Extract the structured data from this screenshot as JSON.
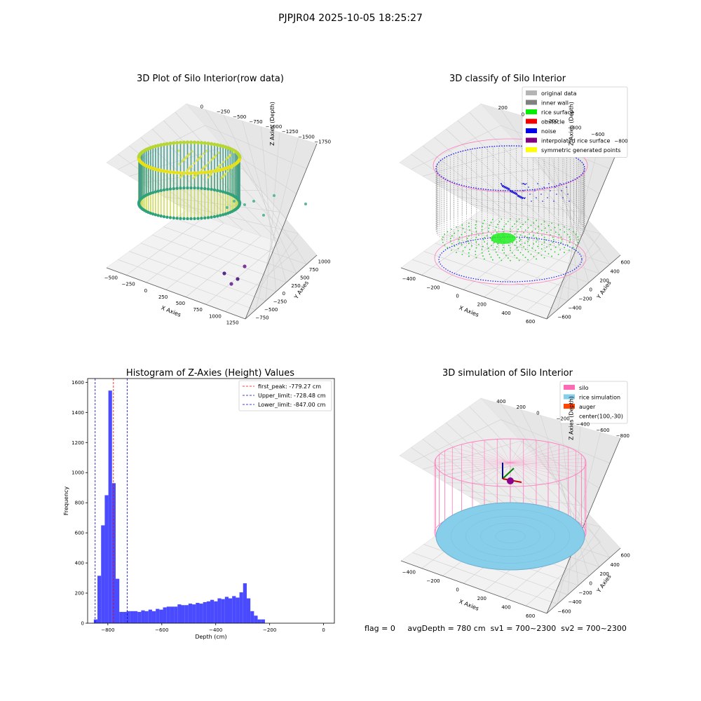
{
  "figure_title": "PJPJR04 2025-10-05 18:25:27",
  "status_line": {
    "flag": "flag = 0",
    "avg_depth": "avgDepth = 780 cm",
    "sv1": "sv1 = 700~2300",
    "sv2": "sv2 = 700~2300"
  },
  "chart_data": [
    {
      "type": "scatter",
      "title": "3D Plot of Silo Interior(row data)",
      "xlabel": "X Axies",
      "ylabel": "Y Axies",
      "zlabel": "Z Axies (Depth)",
      "x_ticks": [
        "−500",
        "−250",
        "0",
        "250",
        "500",
        "750",
        "1000",
        "1250"
      ],
      "y_ticks": [
        "−750",
        "−500",
        "−250",
        "0",
        "250",
        "500",
        "750",
        "1000"
      ],
      "z_ticks": [
        "0",
        "−250",
        "−500",
        "−750",
        "−1000",
        "−1250",
        "−1500",
        "−1750"
      ],
      "xlim": [
        -600,
        1400
      ],
      "ylim": [
        -800,
        1100
      ],
      "zlim": [
        -1900,
        100
      ],
      "colormap": "viridis",
      "outlier_points": [
        {
          "x": 900,
          "y": 300,
          "z": -1200
        },
        {
          "x": 1150,
          "y": 500,
          "z": -1300
        },
        {
          "x": 1000,
          "y": -200,
          "z": -1650
        },
        {
          "x": 1200,
          "y": 50,
          "z": -1100
        }
      ]
    },
    {
      "type": "scatter",
      "title": "3D classify of Silo Interior",
      "xlabel": "X Axies",
      "ylabel": "Y Axies",
      "zlabel": "Z Axies (Depth)",
      "x_ticks": [
        "−400",
        "−200",
        "0",
        "200",
        "400",
        "600"
      ],
      "y_ticks": [
        "−600",
        "−400",
        "−200",
        "0",
        "200",
        "400",
        "600"
      ],
      "z_ticks": [
        "200",
        "0",
        "−200",
        "−400",
        "−600",
        "−800"
      ],
      "legend": [
        {
          "label": "original data",
          "color": "#b4b4b4"
        },
        {
          "label": "inner wall",
          "color": "#808080"
        },
        {
          "label": "rice surface",
          "color": "#00ee00"
        },
        {
          "label": "obstacle",
          "color": "#ee0000"
        },
        {
          "label": "noise",
          "color": "#0000ee"
        },
        {
          "label": "interpolated rice surface",
          "color": "#800080"
        },
        {
          "label": "symmetric generated points",
          "color": "#ffff00"
        }
      ]
    },
    {
      "type": "bar",
      "title": "Histogram of Z-Axies (Height) Values",
      "xlabel": "Depth (cm)",
      "ylabel": "Frequency",
      "xlim": [
        -875,
        40
      ],
      "ylim": [
        0,
        1625
      ],
      "x_ticks": [
        -800,
        -600,
        -400,
        -200,
        0
      ],
      "y_ticks": [
        0,
        200,
        400,
        600,
        800,
        1000,
        1200,
        1400,
        1600
      ],
      "bin_start": -852,
      "bin_width": 13.5,
      "values": [
        25,
        315,
        650,
        850,
        1545,
        930,
        295,
        75,
        75,
        80,
        80,
        80,
        75,
        85,
        80,
        90,
        80,
        95,
        90,
        105,
        110,
        110,
        110,
        125,
        120,
        120,
        130,
        125,
        135,
        130,
        140,
        145,
        155,
        145,
        165,
        160,
        175,
        165,
        180,
        170,
        205,
        265,
        165,
        80,
        50,
        25,
        25
      ],
      "bar_color": "#4a4aff",
      "vlines": [
        {
          "label": "first_peak: -779.27 cm",
          "x": -779.27,
          "color": "#ff0000"
        },
        {
          "label": "Upper_limit: -728.48 cm",
          "x": -728.48,
          "color": "#0000cc"
        },
        {
          "label": "Lower_limit: -847.00 cm",
          "x": -847.0,
          "color": "#0000cc"
        }
      ]
    },
    {
      "type": "scatter",
      "title": "3D simulation of Silo Interior",
      "xlabel": "X Axies",
      "ylabel": "Y Axies",
      "zlabel": "Z Axies (Depth)",
      "x_ticks": [
        "−400",
        "−200",
        "0",
        "200",
        "400",
        "600"
      ],
      "y_ticks": [
        "−600",
        "−400",
        "−200",
        "0",
        "200",
        "400",
        "600"
      ],
      "z_ticks": [
        "400",
        "200",
        "0",
        "−200",
        "−400",
        "−600",
        "−800"
      ],
      "legend": [
        {
          "label": "silo",
          "color": "#ff69b4"
        },
        {
          "label": "rice simulation",
          "color": "#87ceeb"
        },
        {
          "label": "auger",
          "color": "#ff4500"
        },
        {
          "label": "center(100,-30)",
          "color": ""
        }
      ]
    }
  ],
  "colors": {
    "pane": "#f2f2f2",
    "grid": "#d0d0d0",
    "silo_wire": "#ff80c0",
    "rice": "#87ceeb"
  }
}
